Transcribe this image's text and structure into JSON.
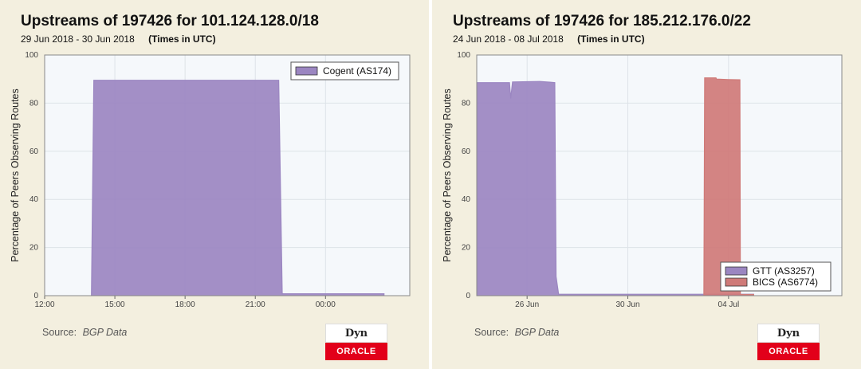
{
  "charts": [
    {
      "title": "Upstreams of 197426 for 101.124.128.0/18",
      "date_range": "29 Jun 2018 - 30 Jun 2018",
      "time_note": "(Times in UTC)",
      "source_label": "Source:",
      "source_value": "BGP Data",
      "logo_top": "Dyn",
      "logo_bottom": "ORACLE"
    },
    {
      "title": "Upstreams of 197426 for 185.212.176.0/22",
      "date_range": "24 Jun 2018 - 08 Jul 2018",
      "time_note": "(Times in UTC)",
      "source_label": "Source:",
      "source_value": "BGP Data",
      "logo_top": "Dyn",
      "logo_bottom": "ORACLE"
    }
  ],
  "chart_data": [
    {
      "type": "area",
      "title": "Upstreams of 197426 for 101.124.128.0/18",
      "ylabel": "Percentage of Peers Observing Routes",
      "xlabel": "",
      "x_unit": "hours since 29 Jun 2018 00:00 UTC",
      "xlim": [
        12,
        27.6
      ],
      "ylim": [
        0,
        100
      ],
      "x_ticks": [
        {
          "value": 12,
          "label": "12:00"
        },
        {
          "value": 15,
          "label": "15:00"
        },
        {
          "value": 18,
          "label": "18:00"
        },
        {
          "value": 21,
          "label": "21:00"
        },
        {
          "value": 24,
          "label": "00:00"
        }
      ],
      "y_ticks": [
        0,
        20,
        40,
        60,
        80,
        100
      ],
      "grid": true,
      "legend": "top-right",
      "series": [
        {
          "name": "Cogent (AS174)",
          "color": "#9b86c1",
          "points": [
            [
              14.0,
              0
            ],
            [
              14.1,
              89.5
            ],
            [
              22.0,
              89.5
            ],
            [
              22.15,
              0.8
            ],
            [
              26.5,
              0.8
            ],
            [
              26.5,
              0
            ]
          ]
        }
      ]
    },
    {
      "type": "area",
      "title": "Upstreams of 197426 for 185.212.176.0/22",
      "ylabel": "Percentage of Peers Observing Routes",
      "xlabel": "",
      "x_unit": "days since 24 Jun 2018 00:00 UTC",
      "xlim": [
        0,
        14.5
      ],
      "ylim": [
        0,
        100
      ],
      "x_ticks": [
        {
          "value": 2,
          "label": "26 Jun"
        },
        {
          "value": 6,
          "label": "30 Jun"
        },
        {
          "value": 10,
          "label": "04 Jul"
        }
      ],
      "y_ticks": [
        0,
        20,
        40,
        60,
        80,
        100
      ],
      "grid": true,
      "legend": "bottom-right",
      "series": [
        {
          "name": "GTT (AS3257)",
          "color": "#9b86c1",
          "points": [
            [
              0,
              88.5
            ],
            [
              1.3,
              88.5
            ],
            [
              1.35,
              82
            ],
            [
              1.42,
              88.8
            ],
            [
              2.5,
              89.0
            ],
            [
              2.9,
              88.7
            ],
            [
              3.1,
              88.5
            ],
            [
              3.15,
              8
            ],
            [
              3.25,
              0.6
            ],
            [
              11.0,
              0.6
            ],
            [
              11.0,
              0
            ]
          ]
        },
        {
          "name": "BICS (AS6774)",
          "color": "#cf7a78",
          "points": [
            [
              9.02,
              0
            ],
            [
              9.05,
              90.5
            ],
            [
              9.5,
              90.5
            ],
            [
              9.52,
              90
            ],
            [
              10.0,
              89.8
            ],
            [
              10.45,
              89.7
            ],
            [
              10.47,
              0.5
            ],
            [
              11.0,
              0.5
            ],
            [
              11.0,
              0
            ]
          ]
        }
      ]
    }
  ]
}
